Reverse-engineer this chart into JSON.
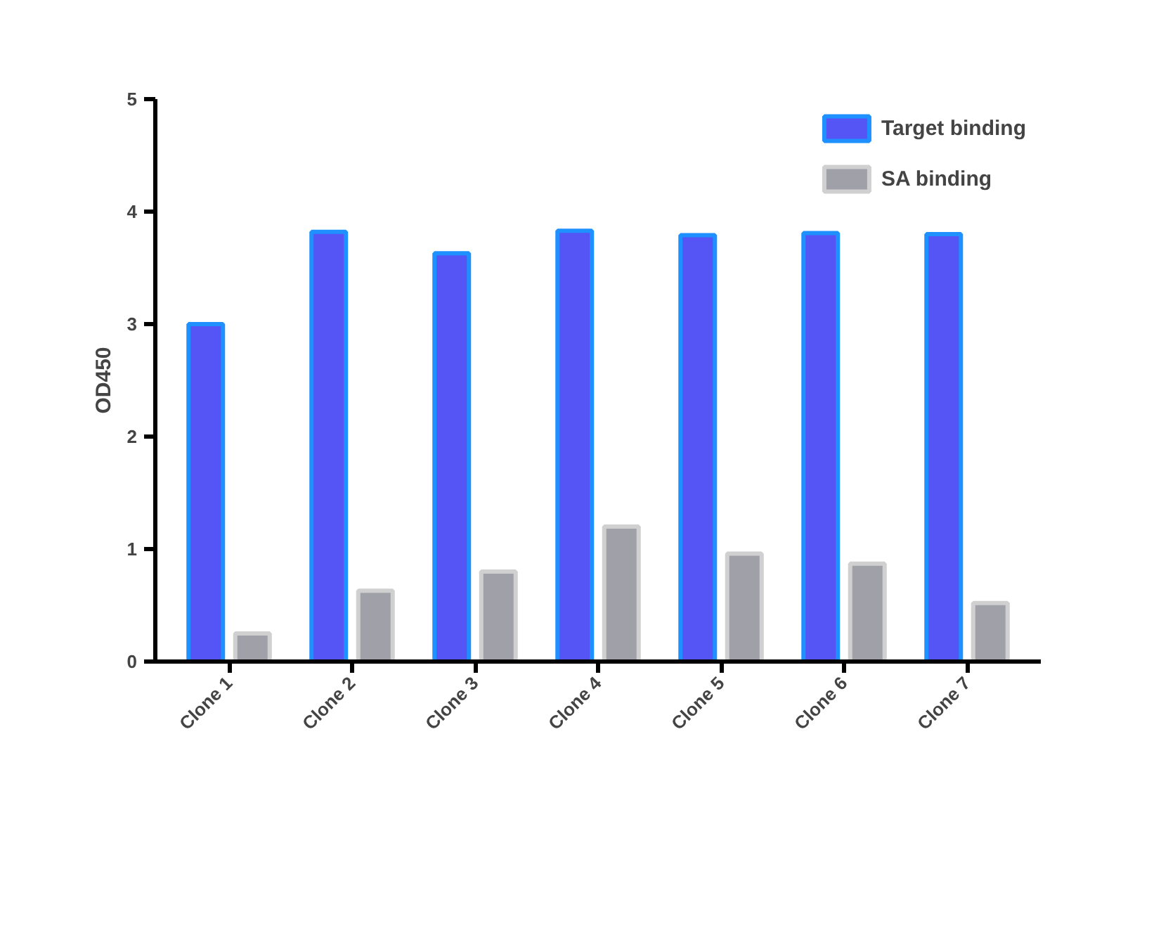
{
  "chart_data": {
    "type": "bar",
    "ylabel": "OD450",
    "categories": [
      "Clone 1",
      "Clone 2",
      "Clone 3",
      "Clone 4",
      "Clone 5",
      "Clone 6",
      "Clone 7"
    ],
    "series": [
      {
        "name": "Target binding",
        "color": "#5555f5",
        "values": [
          3.0,
          3.82,
          3.63,
          3.83,
          3.79,
          3.81,
          3.8
        ]
      },
      {
        "name": "SA binding",
        "color": "#a0a0a8",
        "values": [
          0.25,
          0.63,
          0.8,
          1.2,
          0.96,
          0.87,
          0.52
        ]
      }
    ],
    "ylim": [
      0,
      5
    ],
    "yticks": [
      0,
      1,
      2,
      3,
      4,
      5
    ],
    "grid": false,
    "legend": "top right"
  }
}
